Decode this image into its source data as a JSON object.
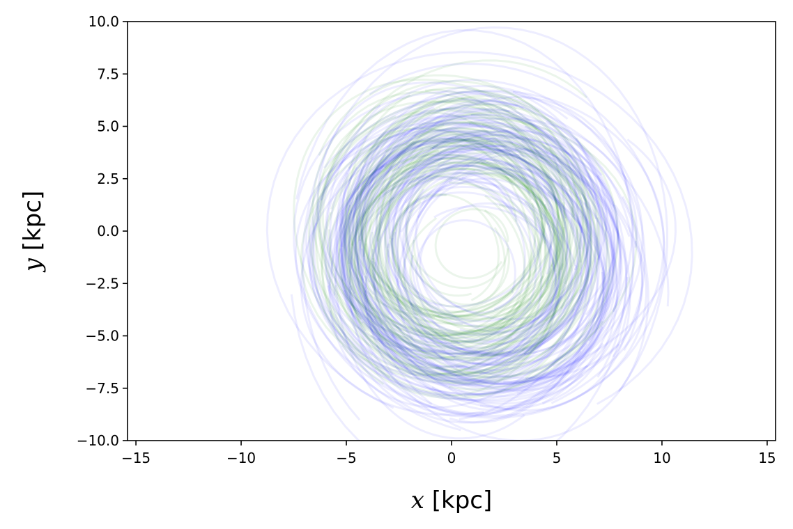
{
  "chart_data": {
    "type": "line",
    "title": "",
    "xlabel_var": "x",
    "xlabel_unit": " [kpc]",
    "ylabel_var": "y",
    "ylabel_unit": " [kpc]",
    "xlim": [
      -15.4,
      15.4
    ],
    "ylim": [
      -10,
      10
    ],
    "x_ticks": [
      -15,
      -10,
      -5,
      0,
      5,
      10,
      15
    ],
    "x_tick_labels": [
      "−15",
      "−10",
      "−5",
      "0",
      "5",
      "10",
      "15"
    ],
    "y_ticks": [
      -10,
      -7.5,
      -5,
      -2.5,
      0,
      2.5,
      5,
      7.5,
      10
    ],
    "y_tick_labels": [
      "−10.0",
      "−7.5",
      "−5.0",
      "−2.5",
      "0.0",
      "2.5",
      "5.0",
      "7.5",
      "10.0"
    ],
    "grid": false,
    "legend": "none",
    "series": [
      {
        "color": "#008000",
        "opacity": 0.08,
        "center": [
          0.4,
          -0.6
        ],
        "orbit_radius_range": [
          1.5,
          8.5
        ],
        "orbit_count": 90
      },
      {
        "color": "#0000ff",
        "opacity": 0.07,
        "center": [
          1.2,
          -1.2
        ],
        "orbit_radius_range": [
          1.5,
          11.0
        ],
        "orbit_count": 110
      }
    ]
  }
}
